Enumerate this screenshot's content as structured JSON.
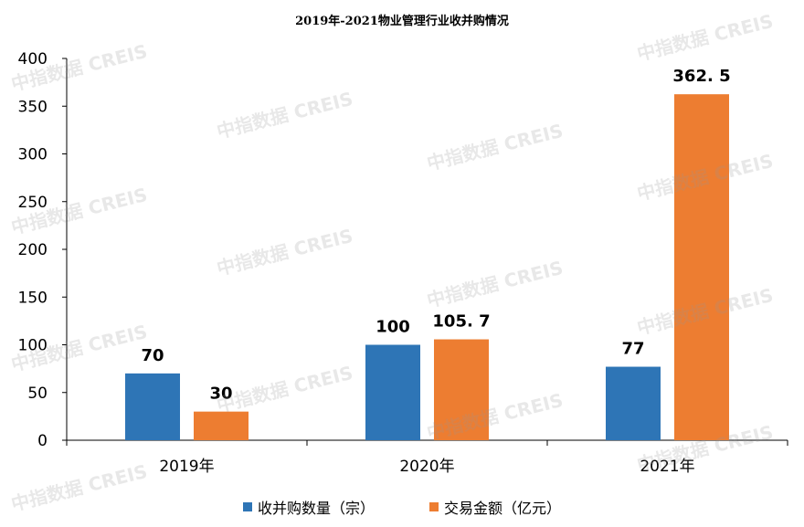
{
  "chart_data": {
    "type": "bar",
    "title": "2019年-2021物业管理行业收并购情况",
    "categories": [
      "2019年",
      "2020年",
      "2021年"
    ],
    "series": [
      {
        "name": "收并购数量（宗）",
        "values": [
          70,
          100,
          77
        ],
        "labels": [
          "70",
          "100",
          "77"
        ],
        "color": "#2e75b6"
      },
      {
        "name": "交易金额（亿元）",
        "values": [
          30,
          105.7,
          362.5
        ],
        "labels": [
          "30",
          "105. 7",
          "362. 5"
        ],
        "color": "#ed7d31"
      }
    ],
    "yticks": [
      "0",
      "50",
      "100",
      "150",
      "200",
      "250",
      "300",
      "350",
      "400"
    ],
    "ylim": [
      0,
      400
    ],
    "grid": false,
    "legend": "bottom"
  },
  "watermark": "中指数据 CREIS"
}
